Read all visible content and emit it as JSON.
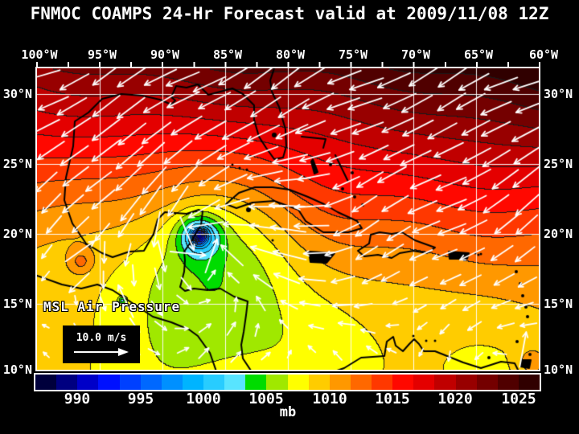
{
  "title": "FNMOC COAMPS 24-Hr Forecast valid at 2009/11/08 12Z",
  "map": {
    "field_label": "MSL Air Pressure",
    "wind_legend": {
      "speed_label": "10.0 m/s"
    }
  },
  "axes": {
    "top": [
      "100°W",
      "95°W",
      "90°W",
      "85°W",
      "80°W",
      "75°W",
      "70°W",
      "65°W",
      "60°W"
    ],
    "left": [
      "30°N",
      "25°N",
      "20°N",
      "15°N",
      "10°N"
    ],
    "right": [
      "30°N",
      "25°N",
      "20°N",
      "15°N",
      "10°N"
    ]
  },
  "colorbar": {
    "tick_labels": [
      "990",
      "995",
      "1000",
      "1005",
      "1010",
      "1015",
      "1020",
      "1025"
    ],
    "unit": "mb",
    "min_value": 986.67,
    "max_value": 1026.67,
    "interval": 1.6667,
    "colors": [
      "#00003C",
      "#000080",
      "#0000C8",
      "#0010FF",
      "#0040FF",
      "#0068FF",
      "#0090FF",
      "#00B4FF",
      "#28CCFF",
      "#58E4FF",
      "#00DC00",
      "#A0E800",
      "#FFFF00",
      "#FFCC00",
      "#FF9800",
      "#FF6800",
      "#FF3800",
      "#FF0800",
      "#E40000",
      "#C00000",
      "#980000",
      "#740000",
      "#500000",
      "#300000"
    ]
  },
  "colors": {
    "background": "#000000",
    "text": "#FFFFFF",
    "grid": "#FFFFFF",
    "coastline": "#000000",
    "wind_arrows": "#FFFFFF",
    "contour": "#1A1A1A"
  }
}
